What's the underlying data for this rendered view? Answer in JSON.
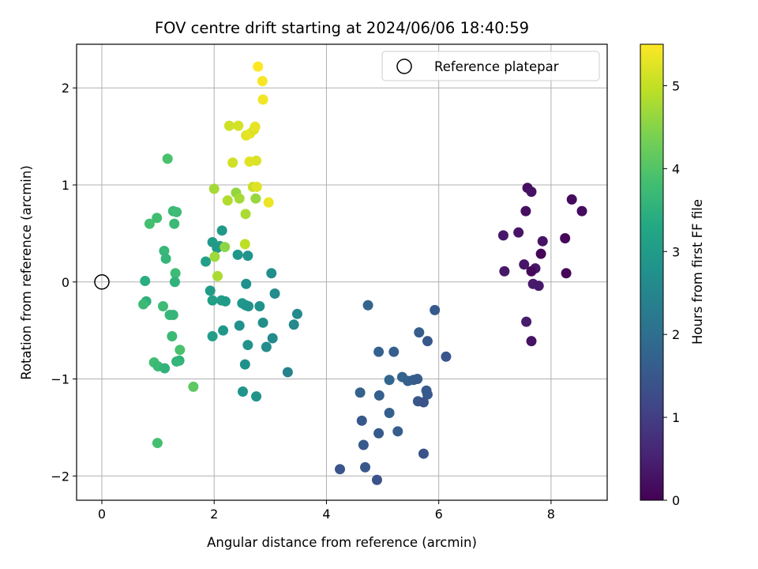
{
  "chart_data": {
    "type": "scatter",
    "title": "FOV centre drift starting at 2024/06/06 18:40:59",
    "xlabel": "Angular distance from reference (arcmin)",
    "ylabel": "Rotation from reference (arcmin)",
    "xlim": [
      -0.45,
      9.0
    ],
    "ylim": [
      -2.25,
      2.45
    ],
    "x_ticks": [
      0,
      2,
      4,
      6,
      8
    ],
    "y_ticks": [
      -2,
      -1,
      0,
      1,
      2
    ],
    "grid": true,
    "legend": {
      "placement": "upper right",
      "entries": [
        "Reference platepar"
      ]
    },
    "reference_point": {
      "x": 0,
      "y": 0,
      "label": "Reference platepar"
    },
    "colorbar": {
      "label": "Hours from first FF file",
      "colormap": "viridis",
      "range": [
        0,
        5.5
      ],
      "ticks": [
        0,
        1,
        2,
        3,
        4,
        5
      ]
    },
    "points": [
      {
        "x": 7.58,
        "y": 0.97,
        "h": 0.2
      },
      {
        "x": 7.65,
        "y": 0.93,
        "h": 0.25
      },
      {
        "x": 8.37,
        "y": 0.85,
        "h": 0.15
      },
      {
        "x": 8.55,
        "y": 0.73,
        "h": 0.18
      },
      {
        "x": 7.55,
        "y": 0.73,
        "h": 0.22
      },
      {
        "x": 7.42,
        "y": 0.51,
        "h": 0.3
      },
      {
        "x": 7.15,
        "y": 0.48,
        "h": 0.35
      },
      {
        "x": 8.25,
        "y": 0.45,
        "h": 0.1
      },
      {
        "x": 7.85,
        "y": 0.42,
        "h": 0.28
      },
      {
        "x": 7.82,
        "y": 0.29,
        "h": 0.05
      },
      {
        "x": 7.52,
        "y": 0.18,
        "h": 0.32
      },
      {
        "x": 7.72,
        "y": 0.14,
        "h": 0.34
      },
      {
        "x": 7.65,
        "y": 0.11,
        "h": 0.12
      },
      {
        "x": 7.17,
        "y": 0.11,
        "h": 0.36
      },
      {
        "x": 8.27,
        "y": 0.09,
        "h": 0.08
      },
      {
        "x": 7.68,
        "y": -0.02,
        "h": 0.4
      },
      {
        "x": 7.78,
        "y": -0.04,
        "h": 0.38
      },
      {
        "x": 7.56,
        "y": -0.41,
        "h": 0.42
      },
      {
        "x": 7.65,
        "y": -0.61,
        "h": 0.26
      },
      {
        "x": 4.74,
        "y": -0.24,
        "h": 1.75
      },
      {
        "x": 5.93,
        "y": -0.29,
        "h": 1.55
      },
      {
        "x": 5.65,
        "y": -0.52,
        "h": 1.6
      },
      {
        "x": 5.8,
        "y": -0.61,
        "h": 1.5
      },
      {
        "x": 4.93,
        "y": -0.72,
        "h": 1.7
      },
      {
        "x": 5.2,
        "y": -0.72,
        "h": 1.65
      },
      {
        "x": 6.13,
        "y": -0.77,
        "h": 1.45
      },
      {
        "x": 5.12,
        "y": -1.01,
        "h": 1.8
      },
      {
        "x": 5.35,
        "y": -0.98,
        "h": 1.75
      },
      {
        "x": 5.45,
        "y": -1.02,
        "h": 1.7
      },
      {
        "x": 5.55,
        "y": -1.01,
        "h": 1.62
      },
      {
        "x": 5.62,
        "y": -1.0,
        "h": 1.58
      },
      {
        "x": 5.78,
        "y": -1.12,
        "h": 1.55
      },
      {
        "x": 5.8,
        "y": -1.16,
        "h": 1.52
      },
      {
        "x": 4.6,
        "y": -1.14,
        "h": 1.72
      },
      {
        "x": 4.94,
        "y": -1.17,
        "h": 1.68
      },
      {
        "x": 5.63,
        "y": -1.23,
        "h": 1.48
      },
      {
        "x": 5.73,
        "y": -1.24,
        "h": 1.42
      },
      {
        "x": 5.12,
        "y": -1.35,
        "h": 1.66
      },
      {
        "x": 4.63,
        "y": -1.43,
        "h": 1.5
      },
      {
        "x": 5.27,
        "y": -1.54,
        "h": 1.6
      },
      {
        "x": 4.93,
        "y": -1.56,
        "h": 1.55
      },
      {
        "x": 4.66,
        "y": -1.68,
        "h": 1.52
      },
      {
        "x": 5.73,
        "y": -1.77,
        "h": 1.4
      },
      {
        "x": 4.24,
        "y": -1.93,
        "h": 1.45
      },
      {
        "x": 4.69,
        "y": -1.91,
        "h": 1.5
      },
      {
        "x": 4.9,
        "y": -2.04,
        "h": 1.38
      },
      {
        "x": 2.14,
        "y": 0.53,
        "h": 2.95
      },
      {
        "x": 1.97,
        "y": 0.41,
        "h": 3.0
      },
      {
        "x": 2.1,
        "y": 0.37,
        "h": 3.05
      },
      {
        "x": 2.05,
        "y": 0.35,
        "h": 2.95
      },
      {
        "x": 2.42,
        "y": 0.28,
        "h": 2.9
      },
      {
        "x": 2.6,
        "y": 0.27,
        "h": 2.85
      },
      {
        "x": 1.85,
        "y": 0.21,
        "h": 3.1
      },
      {
        "x": 3.02,
        "y": 0.09,
        "h": 2.7
      },
      {
        "x": 2.57,
        "y": -0.02,
        "h": 2.75
      },
      {
        "x": 1.93,
        "y": -0.09,
        "h": 3.0
      },
      {
        "x": 3.08,
        "y": -0.12,
        "h": 2.65
      },
      {
        "x": 2.13,
        "y": -0.19,
        "h": 3.05
      },
      {
        "x": 1.97,
        "y": -0.19,
        "h": 3.1
      },
      {
        "x": 2.2,
        "y": -0.2,
        "h": 3.0
      },
      {
        "x": 2.5,
        "y": -0.22,
        "h": 2.95
      },
      {
        "x": 2.56,
        "y": -0.24,
        "h": 2.85
      },
      {
        "x": 2.61,
        "y": -0.25,
        "h": 2.8
      },
      {
        "x": 2.81,
        "y": -0.25,
        "h": 2.75
      },
      {
        "x": 3.48,
        "y": -0.33,
        "h": 2.6
      },
      {
        "x": 2.87,
        "y": -0.42,
        "h": 2.7
      },
      {
        "x": 3.42,
        "y": -0.44,
        "h": 2.55
      },
      {
        "x": 2.45,
        "y": -0.45,
        "h": 2.75
      },
      {
        "x": 2.16,
        "y": -0.5,
        "h": 2.9
      },
      {
        "x": 1.97,
        "y": -0.56,
        "h": 3.05
      },
      {
        "x": 3.04,
        "y": -0.58,
        "h": 2.6
      },
      {
        "x": 2.6,
        "y": -0.65,
        "h": 2.8
      },
      {
        "x": 2.93,
        "y": -0.67,
        "h": 2.65
      },
      {
        "x": 2.55,
        "y": -0.85,
        "h": 2.75
      },
      {
        "x": 3.31,
        "y": -0.93,
        "h": 2.45
      },
      {
        "x": 2.51,
        "y": -1.13,
        "h": 2.85
      },
      {
        "x": 2.75,
        "y": -1.18,
        "h": 2.8
      },
      {
        "x": 1.17,
        "y": 1.27,
        "h": 3.9
      },
      {
        "x": 1.27,
        "y": 0.73,
        "h": 3.7
      },
      {
        "x": 1.33,
        "y": 0.72,
        "h": 3.75
      },
      {
        "x": 0.98,
        "y": 0.66,
        "h": 3.8
      },
      {
        "x": 0.85,
        "y": 0.6,
        "h": 3.85
      },
      {
        "x": 1.29,
        "y": 0.6,
        "h": 3.7
      },
      {
        "x": 1.11,
        "y": 0.32,
        "h": 3.65
      },
      {
        "x": 1.14,
        "y": 0.24,
        "h": 3.6
      },
      {
        "x": 1.31,
        "y": 0.09,
        "h": 3.75
      },
      {
        "x": 0.77,
        "y": 0.01,
        "h": 3.45
      },
      {
        "x": 1.3,
        "y": 0.0,
        "h": 3.55
      },
      {
        "x": 0.79,
        "y": -0.2,
        "h": 3.5
      },
      {
        "x": 0.74,
        "y": -0.23,
        "h": 3.7
      },
      {
        "x": 1.09,
        "y": -0.25,
        "h": 3.75
      },
      {
        "x": 1.21,
        "y": -0.34,
        "h": 3.65
      },
      {
        "x": 1.27,
        "y": -0.34,
        "h": 3.6
      },
      {
        "x": 1.25,
        "y": -0.56,
        "h": 3.7
      },
      {
        "x": 1.39,
        "y": -0.7,
        "h": 3.9
      },
      {
        "x": 1.38,
        "y": -0.81,
        "h": 3.55
      },
      {
        "x": 1.33,
        "y": -0.82,
        "h": 3.6
      },
      {
        "x": 0.93,
        "y": -0.83,
        "h": 3.8
      },
      {
        "x": 1.0,
        "y": -0.87,
        "h": 3.7
      },
      {
        "x": 1.12,
        "y": -0.89,
        "h": 3.55
      },
      {
        "x": 1.63,
        "y": -1.08,
        "h": 4.1
      },
      {
        "x": 0.99,
        "y": -1.66,
        "h": 3.85
      },
      {
        "x": 2.0,
        "y": 0.96,
        "h": 4.75
      },
      {
        "x": 2.01,
        "y": 0.26,
        "h": 4.7
      },
      {
        "x": 2.06,
        "y": 0.06,
        "h": 4.8
      },
      {
        "x": 2.19,
        "y": 0.36,
        "h": 4.55
      },
      {
        "x": 2.55,
        "y": 0.39,
        "h": 4.95
      },
      {
        "x": 2.39,
        "y": 0.92,
        "h": 4.6
      },
      {
        "x": 2.45,
        "y": 0.86,
        "h": 4.75
      },
      {
        "x": 2.24,
        "y": 0.84,
        "h": 4.85
      },
      {
        "x": 2.56,
        "y": 0.7,
        "h": 4.8
      },
      {
        "x": 2.69,
        "y": 0.98,
        "h": 5.05
      },
      {
        "x": 2.76,
        "y": 0.98,
        "h": 5.25
      },
      {
        "x": 2.74,
        "y": 0.86,
        "h": 4.65
      },
      {
        "x": 2.97,
        "y": 0.82,
        "h": 5.35
      },
      {
        "x": 2.33,
        "y": 1.23,
        "h": 5.1
      },
      {
        "x": 2.63,
        "y": 1.24,
        "h": 5.25
      },
      {
        "x": 2.75,
        "y": 1.25,
        "h": 5.2
      },
      {
        "x": 2.27,
        "y": 1.61,
        "h": 5.1
      },
      {
        "x": 2.43,
        "y": 1.61,
        "h": 5.15
      },
      {
        "x": 2.57,
        "y": 1.51,
        "h": 5.25
      },
      {
        "x": 2.64,
        "y": 1.53,
        "h": 5.3
      },
      {
        "x": 2.71,
        "y": 1.57,
        "h": 5.2
      },
      {
        "x": 2.73,
        "y": 1.6,
        "h": 5.3
      },
      {
        "x": 2.87,
        "y": 1.88,
        "h": 5.4
      },
      {
        "x": 2.86,
        "y": 2.07,
        "h": 5.45
      },
      {
        "x": 2.78,
        "y": 2.22,
        "h": 5.5
      }
    ]
  }
}
